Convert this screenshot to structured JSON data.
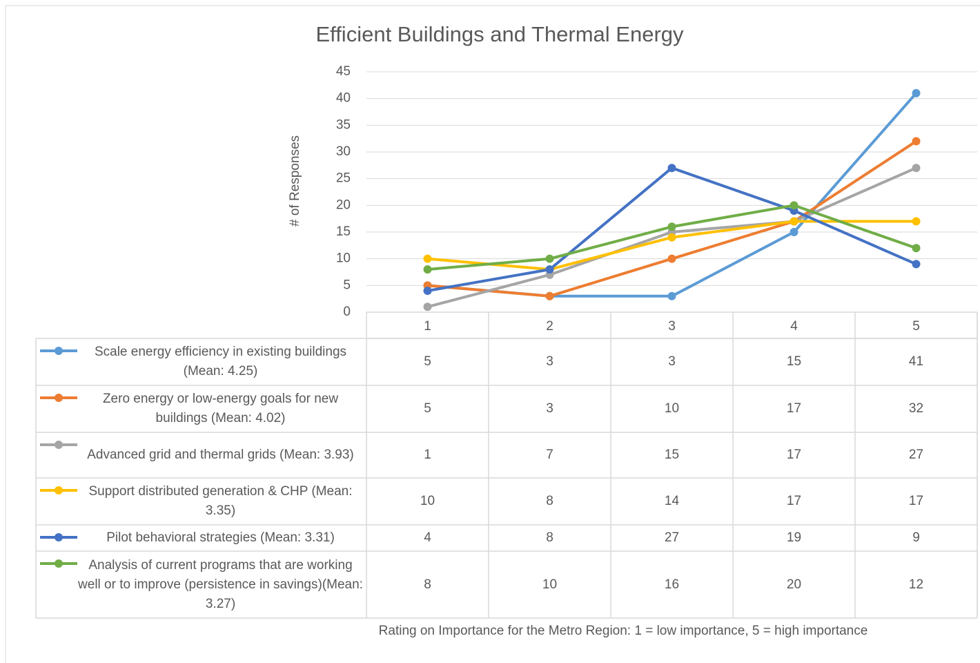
{
  "chart_data": {
    "type": "line",
    "title": "Efficient Buildings and Thermal Energy",
    "y_axis_label": "# of Responses",
    "x_axis_label": "Rating on Importance for the Metro Region: 1 = low importance, 5 = high importance",
    "categories": [
      "1",
      "2",
      "3",
      "4",
      "5"
    ],
    "series": [
      {
        "name": "Scale energy efficiency in existing buildings (Mean: 4.25)",
        "color": "#5b9bd5",
        "values": [
          5,
          3,
          3,
          15,
          41
        ]
      },
      {
        "name": "Zero energy or low-energy goals for new buildings (Mean: 4.02)",
        "color": "#ed7d31",
        "values": [
          5,
          3,
          10,
          17,
          32
        ]
      },
      {
        "name": "Advanced grid and thermal grids (Mean: 3.93)",
        "color": "#a5a5a5",
        "values": [
          1,
          7,
          15,
          17,
          27
        ]
      },
      {
        "name": "Support distributed generation & CHP (Mean: 3.35)",
        "color": "#ffc000",
        "values": [
          10,
          8,
          14,
          17,
          17
        ]
      },
      {
        "name": "Pilot behavioral strategies (Mean: 3.31)",
        "color": "#4472c4",
        "values": [
          4,
          8,
          27,
          19,
          9
        ]
      },
      {
        "name": "Analysis of current programs that are working well or to improve (persistence in savings)(Mean: 3.27)",
        "color": "#70ad47",
        "values": [
          8,
          10,
          16,
          20,
          12
        ]
      }
    ],
    "ylim": [
      0,
      45
    ],
    "yticks": [
      0,
      5,
      10,
      15,
      20,
      25,
      30,
      35,
      40,
      45
    ],
    "grid": true
  }
}
